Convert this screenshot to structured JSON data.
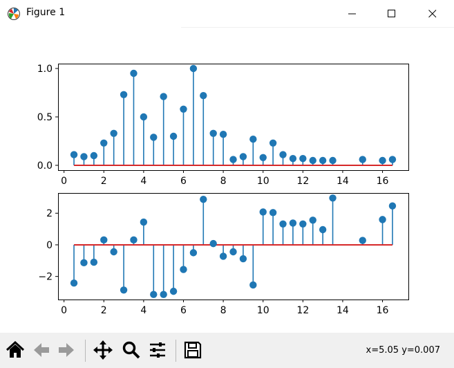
{
  "window": {
    "title": "Figure 1",
    "icon": "matplotlib-icon",
    "controls": [
      "minimize-icon",
      "maximize-icon",
      "close-icon"
    ]
  },
  "toolbar": {
    "buttons": [
      "home-icon",
      "back-arrow-icon",
      "forward-arrow-icon",
      "pan-icon",
      "zoom-icon",
      "configure-subplots-icon",
      "save-icon"
    ],
    "coordinates": "x=5.05 y=0.007"
  },
  "colors": {
    "stem": "#1f77b4",
    "baseline": "#d62728"
  },
  "chart_data": [
    {
      "type": "stem",
      "x": [
        0.5,
        1.0,
        1.5,
        2.0,
        2.5,
        3.0,
        3.5,
        4.0,
        4.5,
        5.0,
        5.5,
        6.0,
        6.5,
        7.0,
        7.5,
        8.0,
        8.5,
        9.0,
        9.5,
        10.0,
        10.5,
        11.0,
        11.5,
        12.0,
        12.5,
        13.0,
        13.5,
        15.0,
        16.0,
        16.5
      ],
      "values": [
        0.11,
        0.09,
        0.1,
        0.23,
        0.33,
        0.73,
        0.95,
        0.5,
        0.29,
        0.71,
        0.3,
        0.58,
        1.0,
        0.72,
        0.33,
        0.32,
        0.06,
        0.09,
        0.27,
        0.08,
        0.23,
        0.11,
        0.07,
        0.07,
        0.05,
        0.05,
        0.05,
        0.06,
        0.05,
        0.06
      ],
      "baseline": 0,
      "xlim": [
        -0.3,
        17.3
      ],
      "ylim": [
        -0.05,
        1.05
      ],
      "xticks": [
        "0",
        "2",
        "4",
        "6",
        "8",
        "10",
        "12",
        "14",
        "16"
      ],
      "yticks": [
        "0.0",
        "0.5",
        "1.0"
      ],
      "grid": false
    },
    {
      "type": "stem",
      "x": [
        0.5,
        1.0,
        1.5,
        2.0,
        2.5,
        3.0,
        3.5,
        4.0,
        4.5,
        5.0,
        5.5,
        6.0,
        6.5,
        7.0,
        7.5,
        8.0,
        8.5,
        9.0,
        9.5,
        10.0,
        10.5,
        11.0,
        11.5,
        12.0,
        12.5,
        13.0,
        13.5,
        15.0,
        16.0,
        16.5
      ],
      "values": [
        -2.42,
        -1.13,
        -1.1,
        0.31,
        -0.44,
        -2.86,
        0.31,
        1.44,
        -3.14,
        -3.14,
        -2.94,
        -1.56,
        -0.5,
        2.88,
        0.08,
        -0.72,
        -0.44,
        -0.88,
        -2.54,
        2.08,
        2.04,
        1.32,
        1.38,
        1.32,
        1.56,
        0.96,
        2.96,
        0.28,
        1.6,
        2.46
      ],
      "baseline": 0,
      "xlim": [
        -0.3,
        17.3
      ],
      "ylim": [
        -3.46,
        3.28
      ],
      "xticks": [
        "0",
        "2",
        "4",
        "6",
        "8",
        "10",
        "12",
        "14",
        "16"
      ],
      "yticks": [
        "-2",
        "0",
        "2"
      ],
      "grid": false
    }
  ]
}
